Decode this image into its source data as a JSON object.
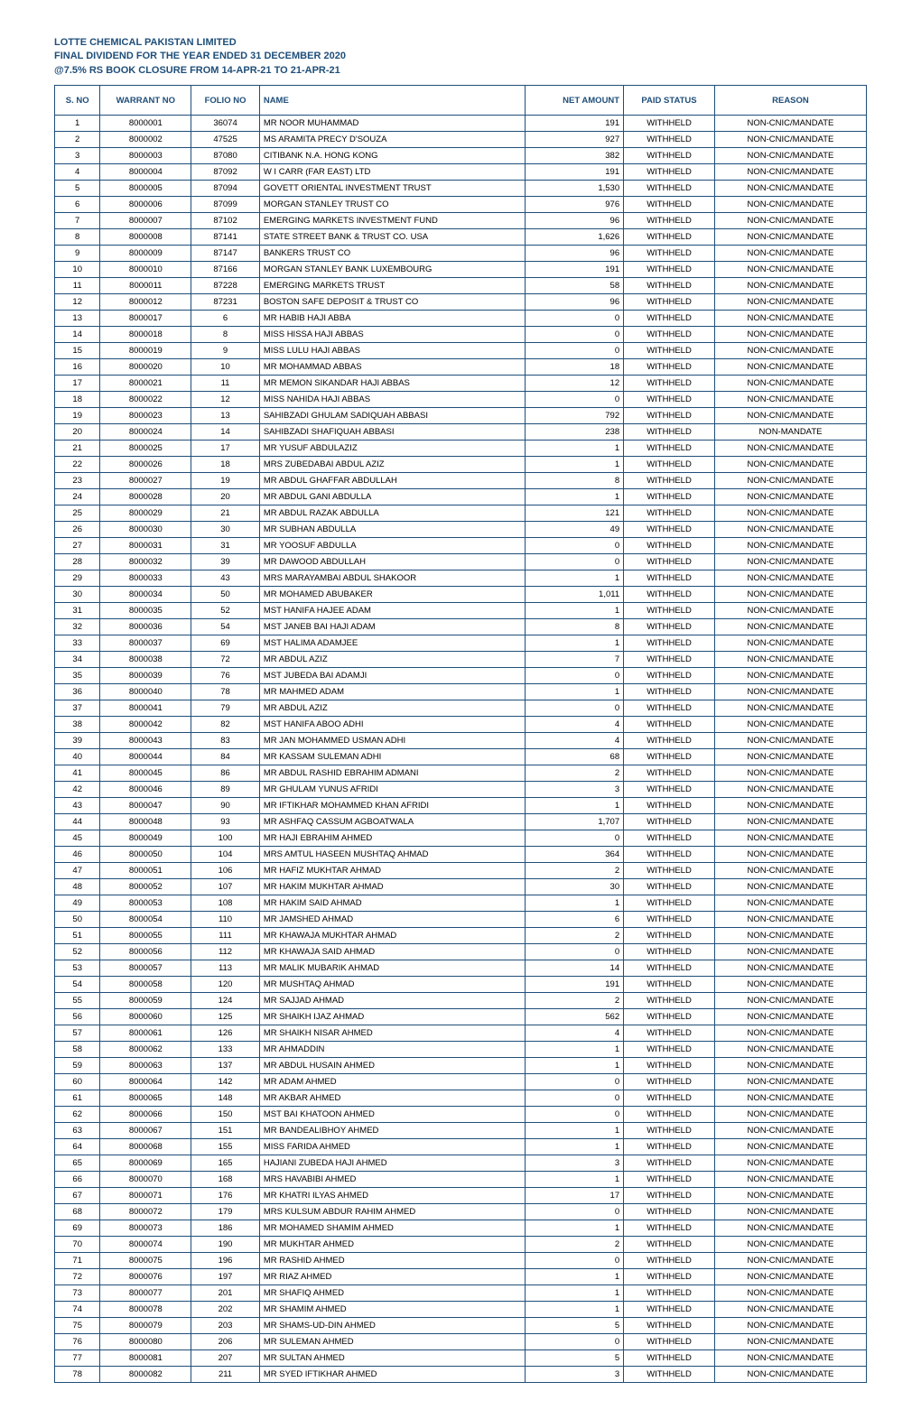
{
  "header": {
    "line1": "LOTTE CHEMICAL PAKISTAN LIMITED",
    "line2": "FINAL DIVIDEND FOR THE YEAR ENDED 31 DECEMBER 2020",
    "line3": "@7.5% RS BOOK CLOSURE FROM 14-APR-21 TO 21-APR-21"
  },
  "theme": {
    "header_color": "#1f4e79",
    "border_color": "#1f4e79",
    "background": "#ffffff",
    "font_family": "Arial",
    "title_fontsize": 11,
    "cell_fontsize": 9.5
  },
  "columns": [
    {
      "key": "sno",
      "label": "S. NO",
      "class": "col-sno"
    },
    {
      "key": "warrant",
      "label": "WARRANT NO",
      "class": "col-warr"
    },
    {
      "key": "folio",
      "label": "FOLIO NO",
      "class": "col-folio"
    },
    {
      "key": "name",
      "label": "NAME",
      "class": "col-name"
    },
    {
      "key": "amount",
      "label": "NET AMOUNT",
      "class": "col-amt"
    },
    {
      "key": "status",
      "label": "PAID STATUS",
      "class": "col-status"
    },
    {
      "key": "reason",
      "label": "REASON",
      "class": "col-reason"
    }
  ],
  "rows": [
    {
      "sno": "1",
      "warrant": "8000001",
      "folio": "36074",
      "name": "MR NOOR MUHAMMAD",
      "amount": "191",
      "status": "WITHHELD",
      "reason": "NON-CNIC/MANDATE"
    },
    {
      "sno": "2",
      "warrant": "8000002",
      "folio": "47525",
      "name": "MS ARAMITA PRECY D'SOUZA",
      "amount": "927",
      "status": "WITHHELD",
      "reason": "NON-CNIC/MANDATE"
    },
    {
      "sno": "3",
      "warrant": "8000003",
      "folio": "87080",
      "name": "CITIBANK N.A. HONG KONG",
      "amount": "382",
      "status": "WITHHELD",
      "reason": "NON-CNIC/MANDATE"
    },
    {
      "sno": "4",
      "warrant": "8000004",
      "folio": "87092",
      "name": "W I CARR (FAR EAST) LTD",
      "amount": "191",
      "status": "WITHHELD",
      "reason": "NON-CNIC/MANDATE"
    },
    {
      "sno": "5",
      "warrant": "8000005",
      "folio": "87094",
      "name": "GOVETT ORIENTAL INVESTMENT TRUST",
      "amount": "1,530",
      "status": "WITHHELD",
      "reason": "NON-CNIC/MANDATE"
    },
    {
      "sno": "6",
      "warrant": "8000006",
      "folio": "87099",
      "name": "MORGAN STANLEY TRUST CO",
      "amount": "976",
      "status": "WITHHELD",
      "reason": "NON-CNIC/MANDATE"
    },
    {
      "sno": "7",
      "warrant": "8000007",
      "folio": "87102",
      "name": "EMERGING MARKETS INVESTMENT FUND",
      "amount": "96",
      "status": "WITHHELD",
      "reason": "NON-CNIC/MANDATE"
    },
    {
      "sno": "8",
      "warrant": "8000008",
      "folio": "87141",
      "name": "STATE STREET BANK & TRUST CO. USA",
      "amount": "1,626",
      "status": "WITHHELD",
      "reason": "NON-CNIC/MANDATE"
    },
    {
      "sno": "9",
      "warrant": "8000009",
      "folio": "87147",
      "name": "BANKERS TRUST CO",
      "amount": "96",
      "status": "WITHHELD",
      "reason": "NON-CNIC/MANDATE"
    },
    {
      "sno": "10",
      "warrant": "8000010",
      "folio": "87166",
      "name": "MORGAN STANLEY BANK LUXEMBOURG",
      "amount": "191",
      "status": "WITHHELD",
      "reason": "NON-CNIC/MANDATE"
    },
    {
      "sno": "11",
      "warrant": "8000011",
      "folio": "87228",
      "name": "EMERGING MARKETS TRUST",
      "amount": "58",
      "status": "WITHHELD",
      "reason": "NON-CNIC/MANDATE"
    },
    {
      "sno": "12",
      "warrant": "8000012",
      "folio": "87231",
      "name": "BOSTON SAFE DEPOSIT & TRUST CO",
      "amount": "96",
      "status": "WITHHELD",
      "reason": "NON-CNIC/MANDATE"
    },
    {
      "sno": "13",
      "warrant": "8000017",
      "folio": "6",
      "name": "MR HABIB HAJI ABBA",
      "amount": "0",
      "status": "WITHHELD",
      "reason": "NON-CNIC/MANDATE"
    },
    {
      "sno": "14",
      "warrant": "8000018",
      "folio": "8",
      "name": "MISS HISSA HAJI ABBAS",
      "amount": "0",
      "status": "WITHHELD",
      "reason": "NON-CNIC/MANDATE"
    },
    {
      "sno": "15",
      "warrant": "8000019",
      "folio": "9",
      "name": "MISS LULU HAJI ABBAS",
      "amount": "0",
      "status": "WITHHELD",
      "reason": "NON-CNIC/MANDATE"
    },
    {
      "sno": "16",
      "warrant": "8000020",
      "folio": "10",
      "name": "MR MOHAMMAD ABBAS",
      "amount": "18",
      "status": "WITHHELD",
      "reason": "NON-CNIC/MANDATE"
    },
    {
      "sno": "17",
      "warrant": "8000021",
      "folio": "11",
      "name": "MR MEMON SIKANDAR HAJI ABBAS",
      "amount": "12",
      "status": "WITHHELD",
      "reason": "NON-CNIC/MANDATE"
    },
    {
      "sno": "18",
      "warrant": "8000022",
      "folio": "12",
      "name": "MISS NAHIDA HAJI ABBAS",
      "amount": "0",
      "status": "WITHHELD",
      "reason": "NON-CNIC/MANDATE"
    },
    {
      "sno": "19",
      "warrant": "8000023",
      "folio": "13",
      "name": "SAHIBZADI GHULAM SADIQUAH ABBASI",
      "amount": "792",
      "status": "WITHHELD",
      "reason": "NON-CNIC/MANDATE"
    },
    {
      "sno": "20",
      "warrant": "8000024",
      "folio": "14",
      "name": "SAHIBZADI SHAFIQUAH ABBASI",
      "amount": "238",
      "status": "WITHHELD",
      "reason": "NON-MANDATE"
    },
    {
      "sno": "21",
      "warrant": "8000025",
      "folio": "17",
      "name": "MR YUSUF ABDULAZIZ",
      "amount": "1",
      "status": "WITHHELD",
      "reason": "NON-CNIC/MANDATE"
    },
    {
      "sno": "22",
      "warrant": "8000026",
      "folio": "18",
      "name": "MRS ZUBEDABAI ABDUL AZIZ",
      "amount": "1",
      "status": "WITHHELD",
      "reason": "NON-CNIC/MANDATE"
    },
    {
      "sno": "23",
      "warrant": "8000027",
      "folio": "19",
      "name": "MR ABDUL GHAFFAR ABDULLAH",
      "amount": "8",
      "status": "WITHHELD",
      "reason": "NON-CNIC/MANDATE"
    },
    {
      "sno": "24",
      "warrant": "8000028",
      "folio": "20",
      "name": "MR ABDUL GANI ABDULLA",
      "amount": "1",
      "status": "WITHHELD",
      "reason": "NON-CNIC/MANDATE"
    },
    {
      "sno": "25",
      "warrant": "8000029",
      "folio": "21",
      "name": "MR ABDUL RAZAK ABDULLA",
      "amount": "121",
      "status": "WITHHELD",
      "reason": "NON-CNIC/MANDATE"
    },
    {
      "sno": "26",
      "warrant": "8000030",
      "folio": "30",
      "name": "MR SUBHAN ABDULLA",
      "amount": "49",
      "status": "WITHHELD",
      "reason": "NON-CNIC/MANDATE"
    },
    {
      "sno": "27",
      "warrant": "8000031",
      "folio": "31",
      "name": "MR  YOOSUF ABDULLA",
      "amount": "0",
      "status": "WITHHELD",
      "reason": "NON-CNIC/MANDATE"
    },
    {
      "sno": "28",
      "warrant": "8000032",
      "folio": "39",
      "name": "MR DAWOOD ABDULLAH",
      "amount": "0",
      "status": "WITHHELD",
      "reason": "NON-CNIC/MANDATE"
    },
    {
      "sno": "29",
      "warrant": "8000033",
      "folio": "43",
      "name": "MRS MARAYAMBAI ABDUL SHAKOOR",
      "amount": "1",
      "status": "WITHHELD",
      "reason": "NON-CNIC/MANDATE"
    },
    {
      "sno": "30",
      "warrant": "8000034",
      "folio": "50",
      "name": "MR MOHAMED ABUBAKER",
      "amount": "1,011",
      "status": "WITHHELD",
      "reason": "NON-CNIC/MANDATE"
    },
    {
      "sno": "31",
      "warrant": "8000035",
      "folio": "52",
      "name": "MST HANIFA HAJEE ADAM",
      "amount": "1",
      "status": "WITHHELD",
      "reason": "NON-CNIC/MANDATE"
    },
    {
      "sno": "32",
      "warrant": "8000036",
      "folio": "54",
      "name": "MST JANEB BAI HAJI ADAM",
      "amount": "8",
      "status": "WITHHELD",
      "reason": "NON-CNIC/MANDATE"
    },
    {
      "sno": "33",
      "warrant": "8000037",
      "folio": "69",
      "name": "MST HALIMA ADAMJEE",
      "amount": "1",
      "status": "WITHHELD",
      "reason": "NON-CNIC/MANDATE"
    },
    {
      "sno": "34",
      "warrant": "8000038",
      "folio": "72",
      "name": "MR ABDUL AZIZ",
      "amount": "7",
      "status": "WITHHELD",
      "reason": "NON-CNIC/MANDATE"
    },
    {
      "sno": "35",
      "warrant": "8000039",
      "folio": "76",
      "name": "MST JUBEDA BAI ADAMJI",
      "amount": "0",
      "status": "WITHHELD",
      "reason": "NON-CNIC/MANDATE"
    },
    {
      "sno": "36",
      "warrant": "8000040",
      "folio": "78",
      "name": "MR MAHMED ADAM",
      "amount": "1",
      "status": "WITHHELD",
      "reason": "NON-CNIC/MANDATE"
    },
    {
      "sno": "37",
      "warrant": "8000041",
      "folio": "79",
      "name": "MR ABDUL AZIZ",
      "amount": "0",
      "status": "WITHHELD",
      "reason": "NON-CNIC/MANDATE"
    },
    {
      "sno": "38",
      "warrant": "8000042",
      "folio": "82",
      "name": "MST  HANIFA ABOO ADHI",
      "amount": "4",
      "status": "WITHHELD",
      "reason": "NON-CNIC/MANDATE"
    },
    {
      "sno": "39",
      "warrant": "8000043",
      "folio": "83",
      "name": "MR JAN MOHAMMED USMAN ADHI",
      "amount": "4",
      "status": "WITHHELD",
      "reason": "NON-CNIC/MANDATE"
    },
    {
      "sno": "40",
      "warrant": "8000044",
      "folio": "84",
      "name": "MR KASSAM SULEMAN ADHI",
      "amount": "68",
      "status": "WITHHELD",
      "reason": "NON-CNIC/MANDATE"
    },
    {
      "sno": "41",
      "warrant": "8000045",
      "folio": "86",
      "name": "MR ABDUL RASHID EBRAHIM ADMANI",
      "amount": "2",
      "status": "WITHHELD",
      "reason": "NON-CNIC/MANDATE"
    },
    {
      "sno": "42",
      "warrant": "8000046",
      "folio": "89",
      "name": "MR GHULAM YUNUS AFRIDI",
      "amount": "3",
      "status": "WITHHELD",
      "reason": "NON-CNIC/MANDATE"
    },
    {
      "sno": "43",
      "warrant": "8000047",
      "folio": "90",
      "name": "MR IFTIKHAR MOHAMMED KHAN AFRIDI",
      "amount": "1",
      "status": "WITHHELD",
      "reason": "NON-CNIC/MANDATE"
    },
    {
      "sno": "44",
      "warrant": "8000048",
      "folio": "93",
      "name": "MR ASHFAQ CASSUM AGBOATWALA",
      "amount": "1,707",
      "status": "WITHHELD",
      "reason": "NON-CNIC/MANDATE"
    },
    {
      "sno": "45",
      "warrant": "8000049",
      "folio": "100",
      "name": "MR HAJI EBRAHIM AHMED",
      "amount": "0",
      "status": "WITHHELD",
      "reason": "NON-CNIC/MANDATE"
    },
    {
      "sno": "46",
      "warrant": "8000050",
      "folio": "104",
      "name": "MRS AMTUL HASEEN MUSHTAQ AHMAD",
      "amount": "364",
      "status": "WITHHELD",
      "reason": "NON-CNIC/MANDATE"
    },
    {
      "sno": "47",
      "warrant": "8000051",
      "folio": "106",
      "name": "MR HAFIZ MUKHTAR AHMAD",
      "amount": "2",
      "status": "WITHHELD",
      "reason": "NON-CNIC/MANDATE"
    },
    {
      "sno": "48",
      "warrant": "8000052",
      "folio": "107",
      "name": "MR HAKIM MUKHTAR AHMAD",
      "amount": "30",
      "status": "WITHHELD",
      "reason": "NON-CNIC/MANDATE"
    },
    {
      "sno": "49",
      "warrant": "8000053",
      "folio": "108",
      "name": "MR HAKIM SAID AHMAD",
      "amount": "1",
      "status": "WITHHELD",
      "reason": "NON-CNIC/MANDATE"
    },
    {
      "sno": "50",
      "warrant": "8000054",
      "folio": "110",
      "name": "MR JAMSHED AHMAD",
      "amount": "6",
      "status": "WITHHELD",
      "reason": "NON-CNIC/MANDATE"
    },
    {
      "sno": "51",
      "warrant": "8000055",
      "folio": "111",
      "name": "MR KHAWAJA MUKHTAR AHMAD",
      "amount": "2",
      "status": "WITHHELD",
      "reason": "NON-CNIC/MANDATE"
    },
    {
      "sno": "52",
      "warrant": "8000056",
      "folio": "112",
      "name": "MR KHAWAJA SAID AHMAD",
      "amount": "0",
      "status": "WITHHELD",
      "reason": "NON-CNIC/MANDATE"
    },
    {
      "sno": "53",
      "warrant": "8000057",
      "folio": "113",
      "name": "MR MALIK MUBARIK AHMAD",
      "amount": "14",
      "status": "WITHHELD",
      "reason": "NON-CNIC/MANDATE"
    },
    {
      "sno": "54",
      "warrant": "8000058",
      "folio": "120",
      "name": "MR MUSHTAQ AHMAD",
      "amount": "191",
      "status": "WITHHELD",
      "reason": "NON-CNIC/MANDATE"
    },
    {
      "sno": "55",
      "warrant": "8000059",
      "folio": "124",
      "name": "MR SAJJAD AHMAD",
      "amount": "2",
      "status": "WITHHELD",
      "reason": "NON-CNIC/MANDATE"
    },
    {
      "sno": "56",
      "warrant": "8000060",
      "folio": "125",
      "name": "MR SHAIKH IJAZ AHMAD",
      "amount": "562",
      "status": "WITHHELD",
      "reason": "NON-CNIC/MANDATE"
    },
    {
      "sno": "57",
      "warrant": "8000061",
      "folio": "126",
      "name": "MR SHAIKH NISAR AHMED",
      "amount": "4",
      "status": "WITHHELD",
      "reason": "NON-CNIC/MANDATE"
    },
    {
      "sno": "58",
      "warrant": "8000062",
      "folio": "133",
      "name": "MR AHMADDIN",
      "amount": "1",
      "status": "WITHHELD",
      "reason": "NON-CNIC/MANDATE"
    },
    {
      "sno": "59",
      "warrant": "8000063",
      "folio": "137",
      "name": "MR ABDUL HUSAIN AHMED",
      "amount": "1",
      "status": "WITHHELD",
      "reason": "NON-CNIC/MANDATE"
    },
    {
      "sno": "60",
      "warrant": "8000064",
      "folio": "142",
      "name": "MR ADAM AHMED",
      "amount": "0",
      "status": "WITHHELD",
      "reason": "NON-CNIC/MANDATE"
    },
    {
      "sno": "61",
      "warrant": "8000065",
      "folio": "148",
      "name": "MR AKBAR AHMED",
      "amount": "0",
      "status": "WITHHELD",
      "reason": "NON-CNIC/MANDATE"
    },
    {
      "sno": "62",
      "warrant": "8000066",
      "folio": "150",
      "name": "MST BAI KHATOON AHMED",
      "amount": "0",
      "status": "WITHHELD",
      "reason": "NON-CNIC/MANDATE"
    },
    {
      "sno": "63",
      "warrant": "8000067",
      "folio": "151",
      "name": "MR BANDEALIBHOY AHMED",
      "amount": "1",
      "status": "WITHHELD",
      "reason": "NON-CNIC/MANDATE"
    },
    {
      "sno": "64",
      "warrant": "8000068",
      "folio": "155",
      "name": "MISS FARIDA AHMED",
      "amount": "1",
      "status": "WITHHELD",
      "reason": "NON-CNIC/MANDATE"
    },
    {
      "sno": "65",
      "warrant": "8000069",
      "folio": "165",
      "name": "HAJIANI ZUBEDA HAJI AHMED",
      "amount": "3",
      "status": "WITHHELD",
      "reason": "NON-CNIC/MANDATE"
    },
    {
      "sno": "66",
      "warrant": "8000070",
      "folio": "168",
      "name": "MRS HAVABIBI AHMED",
      "amount": "1",
      "status": "WITHHELD",
      "reason": "NON-CNIC/MANDATE"
    },
    {
      "sno": "67",
      "warrant": "8000071",
      "folio": "176",
      "name": "MR KHATRI ILYAS AHMED",
      "amount": "17",
      "status": "WITHHELD",
      "reason": "NON-CNIC/MANDATE"
    },
    {
      "sno": "68",
      "warrant": "8000072",
      "folio": "179",
      "name": "MRS KULSUM ABDUR RAHIM AHMED",
      "amount": "0",
      "status": "WITHHELD",
      "reason": "NON-CNIC/MANDATE"
    },
    {
      "sno": "69",
      "warrant": "8000073",
      "folio": "186",
      "name": "MR MOHAMED SHAMIM AHMED",
      "amount": "1",
      "status": "WITHHELD",
      "reason": "NON-CNIC/MANDATE"
    },
    {
      "sno": "70",
      "warrant": "8000074",
      "folio": "190",
      "name": "MR MUKHTAR AHMED",
      "amount": "2",
      "status": "WITHHELD",
      "reason": "NON-CNIC/MANDATE"
    },
    {
      "sno": "71",
      "warrant": "8000075",
      "folio": "196",
      "name": "MR RASHID AHMED",
      "amount": "0",
      "status": "WITHHELD",
      "reason": "NON-CNIC/MANDATE"
    },
    {
      "sno": "72",
      "warrant": "8000076",
      "folio": "197",
      "name": "MR RIAZ AHMED",
      "amount": "1",
      "status": "WITHHELD",
      "reason": "NON-CNIC/MANDATE"
    },
    {
      "sno": "73",
      "warrant": "8000077",
      "folio": "201",
      "name": "MR SHAFIQ AHMED",
      "amount": "1",
      "status": "WITHHELD",
      "reason": "NON-CNIC/MANDATE"
    },
    {
      "sno": "74",
      "warrant": "8000078",
      "folio": "202",
      "name": "MR SHAMIM AHMED",
      "amount": "1",
      "status": "WITHHELD",
      "reason": "NON-CNIC/MANDATE"
    },
    {
      "sno": "75",
      "warrant": "8000079",
      "folio": "203",
      "name": "MR SHAMS-UD-DIN AHMED",
      "amount": "5",
      "status": "WITHHELD",
      "reason": "NON-CNIC/MANDATE"
    },
    {
      "sno": "76",
      "warrant": "8000080",
      "folio": "206",
      "name": "MR SULEMAN AHMED",
      "amount": "0",
      "status": "WITHHELD",
      "reason": "NON-CNIC/MANDATE"
    },
    {
      "sno": "77",
      "warrant": "8000081",
      "folio": "207",
      "name": "MR SULTAN AHMED",
      "amount": "5",
      "status": "WITHHELD",
      "reason": "NON-CNIC/MANDATE"
    },
    {
      "sno": "78",
      "warrant": "8000082",
      "folio": "211",
      "name": "MR SYED IFTIKHAR AHMED",
      "amount": "3",
      "status": "WITHHELD",
      "reason": "NON-CNIC/MANDATE"
    }
  ]
}
